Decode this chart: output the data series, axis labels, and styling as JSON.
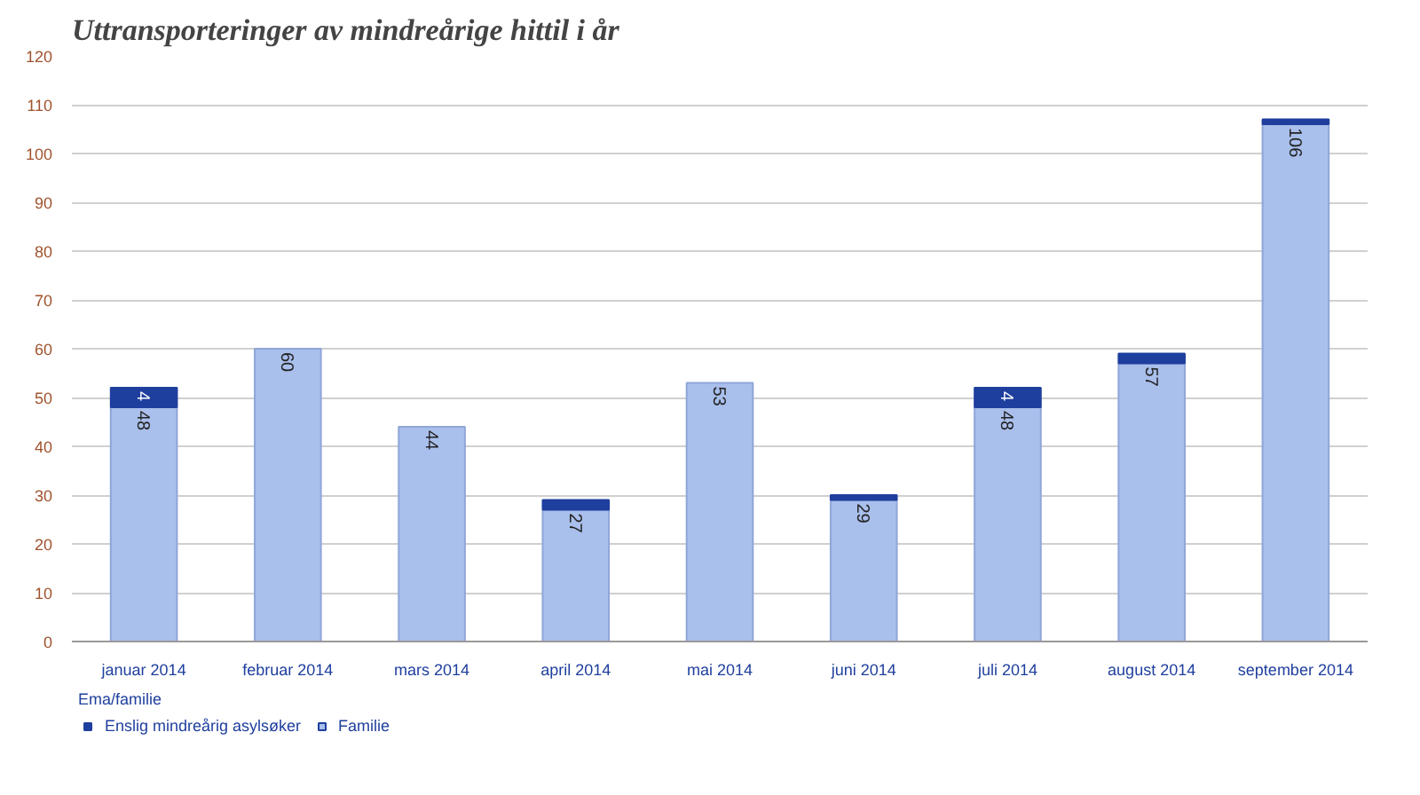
{
  "chart_data": {
    "type": "bar",
    "title": "Uttransporteringer av mindreårige hittil i år",
    "stacked": true,
    "categories": [
      "januar 2014",
      "februar 2014",
      "mars 2014",
      "april 2014",
      "mai 2014",
      "juni 2014",
      "juli 2014",
      "august 2014",
      "september 2014"
    ],
    "series": [
      {
        "name": "Familie",
        "color": "#a9bfec",
        "values": [
          48,
          60,
          44,
          27,
          53,
          29,
          48,
          57,
          106
        ],
        "value_labels": [
          "48",
          "60",
          "44",
          "27",
          "53",
          "29",
          "48",
          "57",
          "106"
        ]
      },
      {
        "name": "Enslig mindreårig asylsøker",
        "color": "#1f3f9e",
        "values": [
          4,
          null,
          null,
          2,
          null,
          1,
          4,
          2,
          1
        ],
        "value_labels": [
          "4",
          null,
          null,
          null,
          null,
          null,
          "4",
          null,
          null
        ]
      }
    ],
    "ylim": [
      0,
      120
    ],
    "yticks": [
      0,
      10,
      20,
      30,
      40,
      50,
      60,
      70,
      80,
      90,
      100,
      110,
      120
    ],
    "grid": "y",
    "legend": "bottom left",
    "legend_title": "Ema/familie"
  }
}
